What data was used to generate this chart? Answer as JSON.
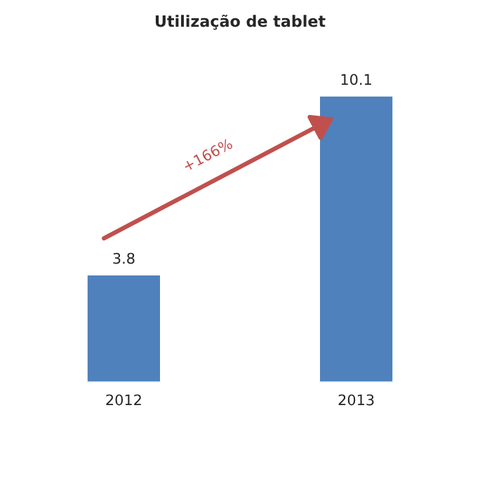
{
  "chart_data": {
    "type": "bar",
    "title": "Utilização de tablet",
    "categories": [
      "2012",
      "2013"
    ],
    "values": [
      3.8,
      10.1
    ],
    "color": "#4f81bd",
    "data_labels": true,
    "annotations": [
      "+166%"
    ]
  }
}
